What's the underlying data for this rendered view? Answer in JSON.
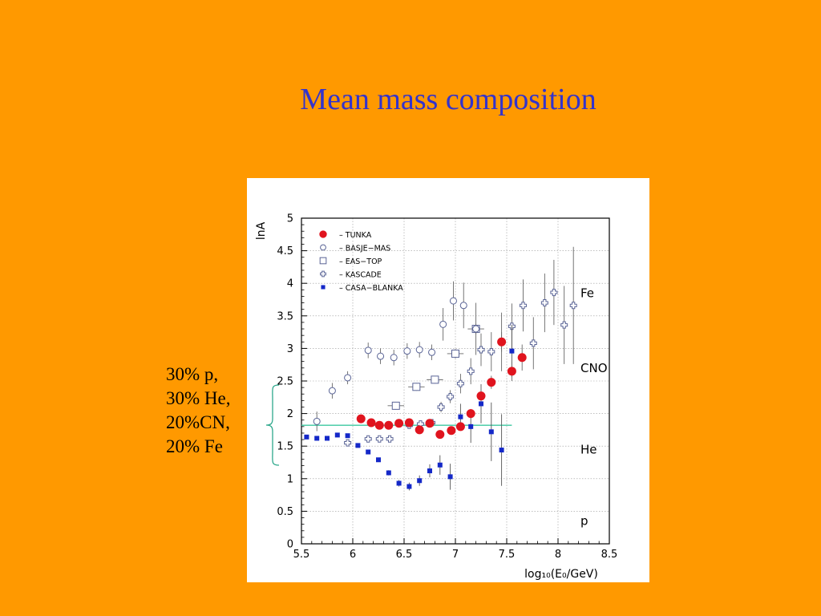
{
  "slide": {
    "title": "Mean mass composition",
    "annotation_lines": [
      "30% p,",
      "30% He,",
      "20%CN,",
      "20% Fe"
    ]
  },
  "colors": {
    "background": "#FF9900",
    "title": "#3333CC",
    "tunka": "#E0141E",
    "casa_blanka": "#1428C8",
    "hollow": "#5A6496",
    "reference_line": "#3CC8A0",
    "brace": "#2EA88C"
  },
  "chart_data": {
    "type": "scatter",
    "title": "",
    "xlabel": "log₁₀(E₀/GeV)",
    "ylabel": "lnA",
    "xlim": [
      5.5,
      8.5
    ],
    "ylim": [
      0,
      5
    ],
    "x_ticks": [
      5.5,
      6,
      6.5,
      7,
      7.5,
      8,
      8.5
    ],
    "x_tick_labels": [
      "5.5",
      "6",
      "6.5",
      "7",
      "7.5",
      "8",
      "8.5"
    ],
    "y_ticks": [
      0,
      0.5,
      1,
      1.5,
      2,
      2.5,
      3,
      3.5,
      4,
      4.5,
      5
    ],
    "y_tick_labels": [
      "0",
      "0.5",
      "1",
      "1.5",
      "2",
      "2.5",
      "3",
      "3.5",
      "4",
      "4.5",
      "5"
    ],
    "grid": true,
    "legend_position": "top-left",
    "region_labels": [
      {
        "text": "Fe",
        "y": 3.85
      },
      {
        "text": "CNO",
        "y": 2.7
      },
      {
        "text": "He",
        "y": 1.45
      },
      {
        "text": "p",
        "y": 0.35
      }
    ],
    "reference_line": {
      "y": 1.82,
      "x_range": [
        5.5,
        7.55
      ]
    },
    "series": [
      {
        "name": "TUNKA",
        "marker": "filled-circle",
        "points": [
          {
            "x": 6.08,
            "y": 1.92,
            "err": 0.03
          },
          {
            "x": 6.18,
            "y": 1.86,
            "err": 0.03
          },
          {
            "x": 6.26,
            "y": 1.82,
            "err": 0.03
          },
          {
            "x": 6.35,
            "y": 1.82,
            "err": 0.03
          },
          {
            "x": 6.45,
            "y": 1.85,
            "err": 0.03
          },
          {
            "x": 6.55,
            "y": 1.86,
            "err": 0.03
          },
          {
            "x": 6.65,
            "y": 1.75,
            "err": 0.04
          },
          {
            "x": 6.75,
            "y": 1.85,
            "err": 0.04
          },
          {
            "x": 6.85,
            "y": 1.68,
            "err": 0.04
          },
          {
            "x": 6.96,
            "y": 1.74,
            "err": 0.05
          },
          {
            "x": 7.05,
            "y": 1.8,
            "err": 0.06
          },
          {
            "x": 7.15,
            "y": 2.0,
            "err": 0.07
          },
          {
            "x": 7.25,
            "y": 2.27,
            "err": 0.08
          },
          {
            "x": 7.35,
            "y": 2.48,
            "err": 0.1
          },
          {
            "x": 7.45,
            "y": 3.1,
            "err": 0.15
          },
          {
            "x": 7.55,
            "y": 2.65,
            "err": 0.15
          },
          {
            "x": 7.65,
            "y": 2.86,
            "err": 0.2
          }
        ]
      },
      {
        "name": "BASJE−MAS",
        "marker": "open-circle",
        "points": [
          {
            "x": 5.65,
            "y": 1.88,
            "err": 0.15
          },
          {
            "x": 5.8,
            "y": 2.35,
            "err": 0.12
          },
          {
            "x": 5.95,
            "y": 2.55,
            "err": 0.1
          },
          {
            "x": 6.15,
            "y": 2.97,
            "err": 0.12
          },
          {
            "x": 6.27,
            "y": 2.88,
            "err": 0.12
          },
          {
            "x": 6.4,
            "y": 2.86,
            "err": 0.12
          },
          {
            "x": 6.53,
            "y": 2.96,
            "err": 0.12
          },
          {
            "x": 6.65,
            "y": 2.98,
            "err": 0.12
          },
          {
            "x": 6.77,
            "y": 2.94,
            "err": 0.12
          },
          {
            "x": 6.88,
            "y": 3.37,
            "err": 0.25
          },
          {
            "x": 6.98,
            "y": 3.73,
            "err": 0.3
          },
          {
            "x": 7.08,
            "y": 3.66,
            "err": 0.35
          },
          {
            "x": 7.2,
            "y": 3.3,
            "err": 0.4
          },
          {
            "x": 7.45,
            "y": 3.1,
            "err": 0.45
          }
        ]
      },
      {
        "name": "EAS−TOP",
        "marker": "open-square",
        "points": [
          {
            "x": 6.42,
            "y": 2.12,
            "err": 0.06,
            "xerr": 0.08
          },
          {
            "x": 6.62,
            "y": 2.41,
            "err": 0.06,
            "xerr": 0.08
          },
          {
            "x": 6.8,
            "y": 2.52,
            "err": 0.06,
            "xerr": 0.08
          },
          {
            "x": 7.0,
            "y": 2.92,
            "err": 0.07,
            "xerr": 0.08
          },
          {
            "x": 7.2,
            "y": 3.3,
            "err": 0.08,
            "xerr": 0.08
          }
        ]
      },
      {
        "name": "KASCADE",
        "marker": "open-cross",
        "points": [
          {
            "x": 5.95,
            "y": 1.55,
            "err": 0.05
          },
          {
            "x": 6.15,
            "y": 1.61,
            "err": 0.05
          },
          {
            "x": 6.26,
            "y": 1.61,
            "err": 0.05
          },
          {
            "x": 6.36,
            "y": 1.61,
            "err": 0.05
          },
          {
            "x": 6.55,
            "y": 1.82,
            "err": 0.05
          },
          {
            "x": 6.66,
            "y": 1.84,
            "err": 0.05
          },
          {
            "x": 6.77,
            "y": 1.86,
            "err": 0.05
          },
          {
            "x": 6.86,
            "y": 2.1,
            "err": 0.08
          },
          {
            "x": 6.95,
            "y": 2.26,
            "err": 0.1
          },
          {
            "x": 7.05,
            "y": 2.46,
            "err": 0.15
          },
          {
            "x": 7.15,
            "y": 2.65,
            "err": 0.2
          },
          {
            "x": 7.25,
            "y": 2.98,
            "err": 0.25
          },
          {
            "x": 7.35,
            "y": 2.95,
            "err": 0.3
          },
          {
            "x": 7.55,
            "y": 3.34,
            "err": 0.35
          },
          {
            "x": 7.66,
            "y": 3.66,
            "err": 0.4
          },
          {
            "x": 7.76,
            "y": 3.08,
            "err": 0.4
          },
          {
            "x": 7.87,
            "y": 3.7,
            "err": 0.45
          },
          {
            "x": 7.96,
            "y": 3.86,
            "err": 0.5
          },
          {
            "x": 8.06,
            "y": 3.36,
            "err": 0.6
          },
          {
            "x": 8.15,
            "y": 3.66,
            "err": 0.9
          }
        ]
      },
      {
        "name": "CASA−BLANKA",
        "marker": "filled-square",
        "points": [
          {
            "x": 5.55,
            "y": 1.64,
            "err": 0.03
          },
          {
            "x": 5.65,
            "y": 1.62,
            "err": 0.03
          },
          {
            "x": 5.75,
            "y": 1.62,
            "err": 0.03
          },
          {
            "x": 5.85,
            "y": 1.67,
            "err": 0.03
          },
          {
            "x": 5.95,
            "y": 1.66,
            "err": 0.03
          },
          {
            "x": 6.05,
            "y": 1.51,
            "err": 0.03
          },
          {
            "x": 6.15,
            "y": 1.41,
            "err": 0.03
          },
          {
            "x": 6.25,
            "y": 1.29,
            "err": 0.03
          },
          {
            "x": 6.35,
            "y": 1.09,
            "err": 0.04
          },
          {
            "x": 6.45,
            "y": 0.93,
            "err": 0.05
          },
          {
            "x": 6.55,
            "y": 0.88,
            "err": 0.06
          },
          {
            "x": 6.65,
            "y": 0.97,
            "err": 0.08
          },
          {
            "x": 6.75,
            "y": 1.12,
            "err": 0.1
          },
          {
            "x": 6.85,
            "y": 1.21,
            "err": 0.15
          },
          {
            "x": 6.95,
            "y": 1.03,
            "err": 0.2
          },
          {
            "x": 7.05,
            "y": 1.95,
            "err": 0.2
          },
          {
            "x": 7.15,
            "y": 1.8,
            "err": 0.25
          },
          {
            "x": 7.25,
            "y": 2.15,
            "err": 0.3
          },
          {
            "x": 7.35,
            "y": 1.72,
            "err": 0.45
          },
          {
            "x": 7.45,
            "y": 1.44,
            "err": 0.55
          },
          {
            "x": 7.55,
            "y": 2.96,
            "err": 0.4
          }
        ]
      }
    ]
  }
}
